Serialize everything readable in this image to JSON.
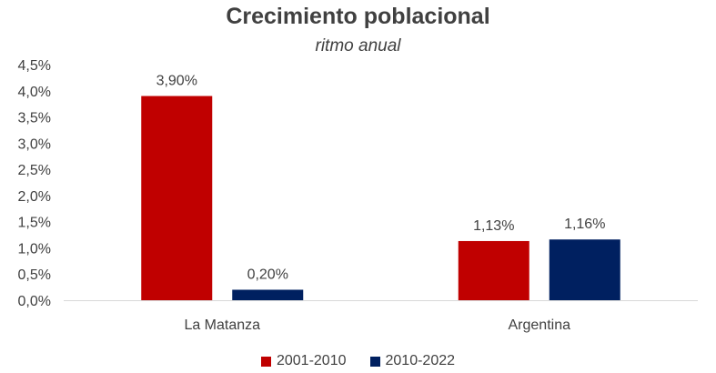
{
  "chart_data": {
    "type": "bar",
    "title": "Crecimiento poblacional",
    "subtitle": "ritmo anual",
    "categories": [
      "La Matanza",
      "Argentina"
    ],
    "series": [
      {
        "name": "2001-2010",
        "values": [
          3.9,
          1.13
        ],
        "labels": [
          "3,90%",
          "1,13%"
        ],
        "color": "#c00000"
      },
      {
        "name": "2010-2022",
        "values": [
          0.2,
          1.16
        ],
        "labels": [
          "0,20%",
          "1,16%"
        ],
        "color": "#002060"
      }
    ],
    "ylim": [
      0,
      4.5
    ],
    "yticks": [
      {
        "value": 0.0,
        "label": "0,0%"
      },
      {
        "value": 0.5,
        "label": "0,5%"
      },
      {
        "value": 1.0,
        "label": "1,0%"
      },
      {
        "value": 1.5,
        "label": "1,5%"
      },
      {
        "value": 2.0,
        "label": "2,0%"
      },
      {
        "value": 2.5,
        "label": "2,5%"
      },
      {
        "value": 3.0,
        "label": "3,0%"
      },
      {
        "value": 3.5,
        "label": "3,5%"
      },
      {
        "value": 4.0,
        "label": "4,0%"
      },
      {
        "value": 4.5,
        "label": "4,5%"
      }
    ],
    "grid": false,
    "legend_position": "bottom"
  }
}
